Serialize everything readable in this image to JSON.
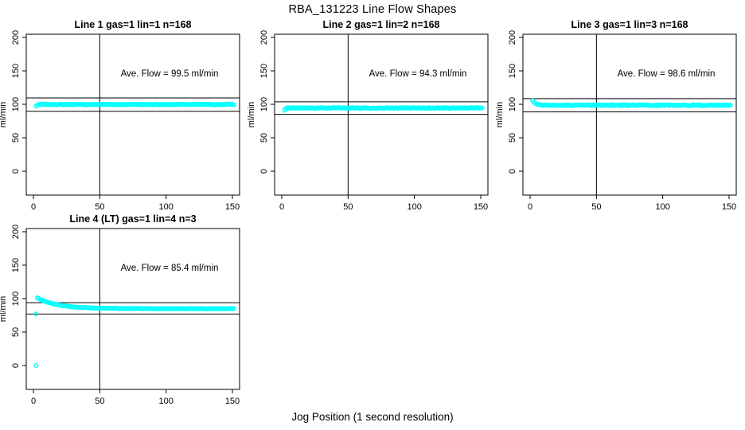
{
  "page": {
    "title": "RBA_131223  Line Flow Shapes",
    "xlabel": "Jog Position (1 second resolution)"
  },
  "colors": {
    "points": "#00FFFF",
    "axis": "#000000",
    "background": "#FFFFFF"
  },
  "chart_data": [
    {
      "type": "scatter",
      "title": "Line 1 gas=1 lin=1 n=168",
      "ylabel": "ml/min",
      "annotation": "Ave. Flow =  99.5  ml/min",
      "ave_flow_ml_min": 99.5,
      "n_points": 168,
      "x_ticks": [
        0,
        50,
        100,
        150
      ],
      "y_ticks": [
        0,
        50,
        100,
        150,
        200
      ],
      "xlim": [
        -5,
        156
      ],
      "ylim": [
        -36,
        204
      ],
      "vline_x": 50,
      "hlines": [
        109.5,
        89.6
      ],
      "grid": false,
      "legend": false,
      "series": {
        "kind": "flat",
        "x0": 2,
        "x1": 151,
        "mean": 99.8,
        "jitter": 0.5,
        "head": [
          [
            2,
            97.3
          ],
          [
            3,
            98.9
          ]
        ],
        "outliers": []
      }
    },
    {
      "type": "scatter",
      "title": "Line 2 gas=1 lin=2 n=168",
      "ylabel": "ml/min",
      "annotation": "Ave. Flow =  94.3  ml/min",
      "ave_flow_ml_min": 94.3,
      "n_points": 168,
      "x_ticks": [
        0,
        50,
        100,
        150
      ],
      "y_ticks": [
        0,
        50,
        100,
        150,
        200
      ],
      "xlim": [
        -5,
        156
      ],
      "ylim": [
        -36,
        204
      ],
      "vline_x": 50,
      "hlines": [
        103.7,
        84.9
      ],
      "grid": false,
      "legend": false,
      "series": {
        "kind": "flat",
        "x0": 2,
        "x1": 151,
        "mean": 94.5,
        "jitter": 0.5,
        "head": [
          [
            2,
            91.2
          ],
          [
            3,
            93.2
          ]
        ],
        "outliers": []
      }
    },
    {
      "type": "scatter",
      "title": "Line 3 gas=1 lin=3 n=168",
      "ylabel": "ml/min",
      "annotation": "Ave. Flow =  98.6  ml/min",
      "ave_flow_ml_min": 98.6,
      "n_points": 168,
      "x_ticks": [
        0,
        50,
        100,
        150
      ],
      "y_ticks": [
        0,
        50,
        100,
        150,
        200
      ],
      "xlim": [
        -5,
        156
      ],
      "ylim": [
        -36,
        204
      ],
      "vline_x": 50,
      "hlines": [
        108.5,
        88.7
      ],
      "grid": false,
      "legend": false,
      "series": {
        "kind": "flat",
        "x0": 2,
        "x1": 151,
        "mean": 98.7,
        "jitter": 0.7,
        "head": [
          [
            2,
            105.5
          ],
          [
            3,
            103.2
          ],
          [
            4,
            101.6
          ],
          [
            5,
            100.6
          ],
          [
            6,
            99.9
          ],
          [
            7,
            99.3
          ]
        ],
        "outliers": []
      }
    },
    {
      "type": "scatter",
      "title": "Line 4 (LT) gas=1 lin=4 n=3",
      "ylabel": "ml/min",
      "annotation": "Ave. Flow =  85.4  ml/min",
      "ave_flow_ml_min": 85.4,
      "n_points": 3,
      "x_ticks": [
        0,
        50,
        100,
        150
      ],
      "y_ticks": [
        0,
        50,
        100,
        150,
        200
      ],
      "xlim": [
        -5,
        156
      ],
      "ylim": [
        -36,
        204
      ],
      "vline_x": 50,
      "hlines": [
        93.9,
        76.9
      ],
      "grid": false,
      "legend": false,
      "series": {
        "kind": "decay",
        "x0": 3,
        "x1": 151,
        "base": 85.0,
        "amp": 16.0,
        "tau": 15.0,
        "jitter": 0.3,
        "head": [],
        "outliers": [
          [
            2,
            0
          ],
          [
            2,
            77
          ]
        ]
      }
    }
  ]
}
